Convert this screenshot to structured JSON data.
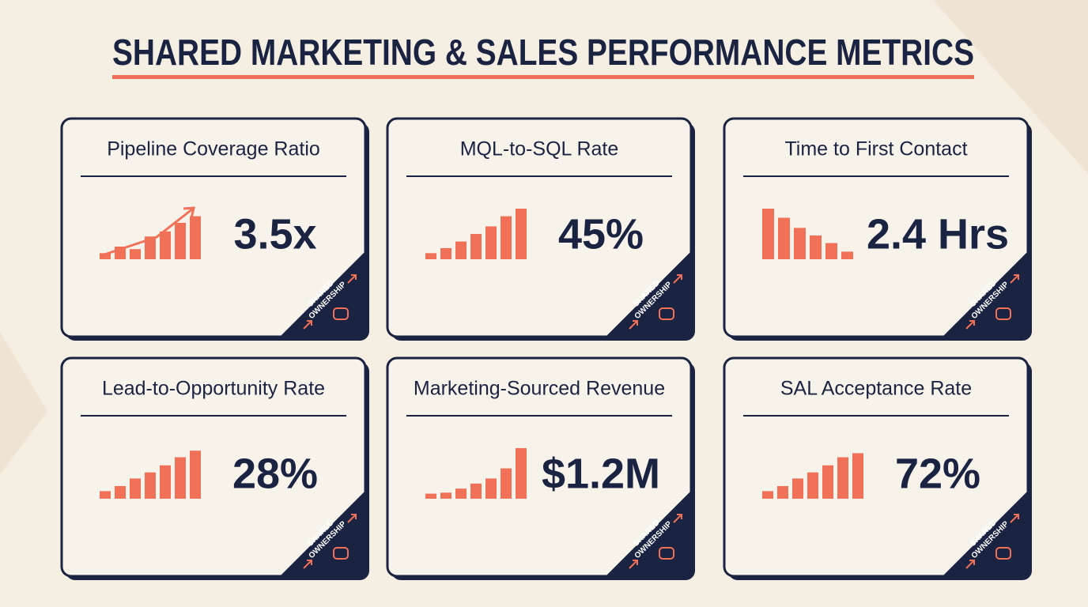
{
  "header": {
    "title": "SHARED MARKETING & SALES PERFORMANCE METRICS"
  },
  "badge": [
    "SHARED",
    "OWNERSHIP"
  ],
  "cards": [
    {
      "title": "Pipeline Coverage Ratio",
      "value": "3.5x"
    },
    {
      "title": "MQL-to-SQL Rate",
      "value": "45%"
    },
    {
      "title": "Time to First Contact",
      "value": "2.4 Hrs"
    },
    {
      "title": "Lead-to-Opportunity Rate",
      "value": "28%"
    },
    {
      "title": "Marketing-Sourced Revenue",
      "value": "$1.2M"
    },
    {
      "title": "SAL Acceptance Rate",
      "value": "72%"
    }
  ]
}
